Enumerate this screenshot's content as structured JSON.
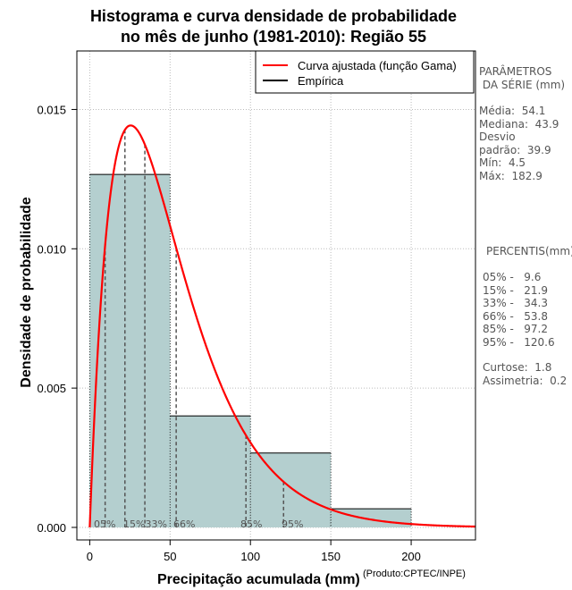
{
  "title_line1": "Histograma e curva densidade de probabilidade",
  "title_line2": "no mês de junho (1981-2010): Região 55",
  "chart_data": {
    "type": "histogram",
    "xlabel": "Precipitação acumulada (mm)",
    "ylabel": "Densidade de probabilidade",
    "credit": "(Produto:CPTEC/INPE)",
    "xlim": [
      -8,
      240
    ],
    "ylim": [
      -0.00045,
      0.0171
    ],
    "xticks": [
      0,
      50,
      100,
      150,
      200
    ],
    "yticks": [
      0.0,
      0.005,
      0.01,
      0.015
    ],
    "ytick_labels": [
      "0.000",
      "0.005",
      "0.010",
      "0.015"
    ],
    "bins": [
      {
        "from": 0,
        "to": 50,
        "density": 0.01267
      },
      {
        "from": 50,
        "to": 100,
        "density": 0.004
      },
      {
        "from": 100,
        "to": 150,
        "density": 0.00267
      },
      {
        "from": 150,
        "to": 200,
        "density": 0.00067
      }
    ],
    "fitted_curve": {
      "distribution": "gamma",
      "shape": 2.0,
      "scale_mm": 25.5,
      "color": "#ff0000"
    },
    "percentiles": [
      {
        "label": "05%",
        "value": 9.6
      },
      {
        "label": "15%",
        "value": 21.9
      },
      {
        "label": "33%",
        "value": 34.3
      },
      {
        "label": "66%",
        "value": 53.8
      },
      {
        "label": "85%",
        "value": 97.2
      },
      {
        "label": "95%",
        "value": 120.6
      }
    ],
    "legend": {
      "position": "top-right",
      "entries": [
        {
          "label": "Curva ajustada (função Gama)",
          "color": "#ff0000"
        },
        {
          "label": "Empírica",
          "color": "#000000"
        }
      ]
    },
    "bar_fill": "#b4cfcf",
    "grid": true
  },
  "sidebar": {
    "params_title": "PARÂMETROS\n DA SÉRIE (mm)",
    "params": "Média:  54.1\nMediana:  43.9\nDesvio\npadrão:  39.9\nMín:  4.5\nMáx:  182.9",
    "percentis_title": "PERCENTIS(mm)",
    "percentis": "05% -   9.6\n15% -   21.9\n33% -   34.3\n66% -   53.8\n85% -   97.2\n95% -   120.6",
    "stats": "Curtose:  1.8\nAssimetria:  0.2"
  }
}
